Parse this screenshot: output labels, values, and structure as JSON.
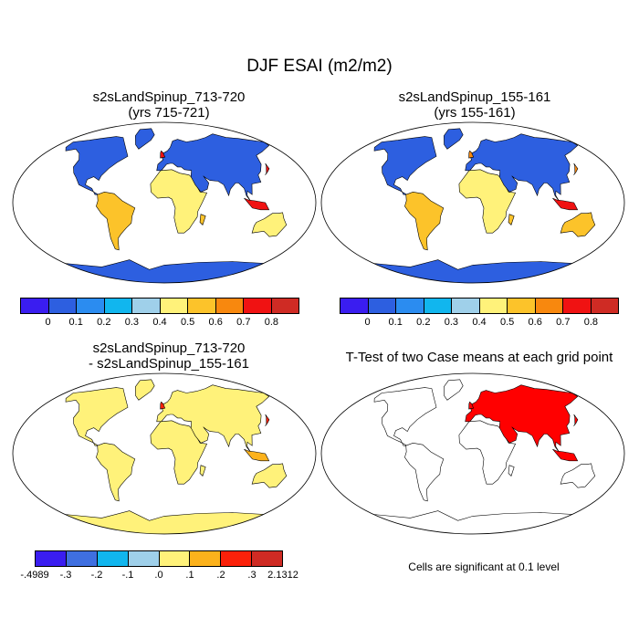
{
  "title": "DJF ESAI (m2/m2)",
  "colors": {
    "abs_palette": [
      "#3a1df0",
      "#2d5fe0",
      "#2b8cf0",
      "#11b6ee",
      "#9fd0ea",
      "#fff27a",
      "#fcc32a",
      "#f8880e",
      "#f01212",
      "#cf2b24"
    ],
    "diff_palette": [
      "#3a1df0",
      "#3f6fe0",
      "#11b6ee",
      "#9fd0ea",
      "#fff27a",
      "#fcb21c",
      "#fb210a",
      "#cf2b24"
    ],
    "significant": "#ff0000"
  },
  "panels": {
    "p1": {
      "title": "s2sLandSpinup_713-720\n(yrs 715-721)"
    },
    "p2": {
      "title": "s2sLandSpinup_155-161\n(yrs 155-161)"
    },
    "p3": {
      "title": "s2sLandSpinup_713-720\n- s2sLandSpinup_155-161"
    },
    "p4": {
      "title": "T-Test of two Case means at each grid point",
      "note": "Cells are significant at 0.1 level"
    }
  },
  "chart_data": [
    {
      "type": "heatmap",
      "title": "s2sLandSpinup_713-720 (yrs 715-721)",
      "colorbar_levels": [
        "0",
        "0.1",
        "0.2",
        "0.3",
        "0.4",
        "0.5",
        "0.6",
        "0.7",
        "0.8"
      ]
    },
    {
      "type": "heatmap",
      "title": "s2sLandSpinup_155-161 (yrs 155-161)",
      "colorbar_levels": [
        "0",
        "0.1",
        "0.2",
        "0.3",
        "0.4",
        "0.5",
        "0.6",
        "0.7",
        "0.8"
      ]
    },
    {
      "type": "heatmap",
      "title": "s2sLandSpinup_713-720 - s2sLandSpinup_155-161",
      "colorbar_levels": [
        "-.4989",
        "-.3",
        "-.2",
        "-.1",
        ".0",
        ".1",
        ".2",
        ".3",
        "2.1312"
      ]
    },
    {
      "type": "heatmap",
      "title": "T-Test of two Case means at each grid point",
      "note": "Cells are significant at 0.1 level"
    }
  ]
}
